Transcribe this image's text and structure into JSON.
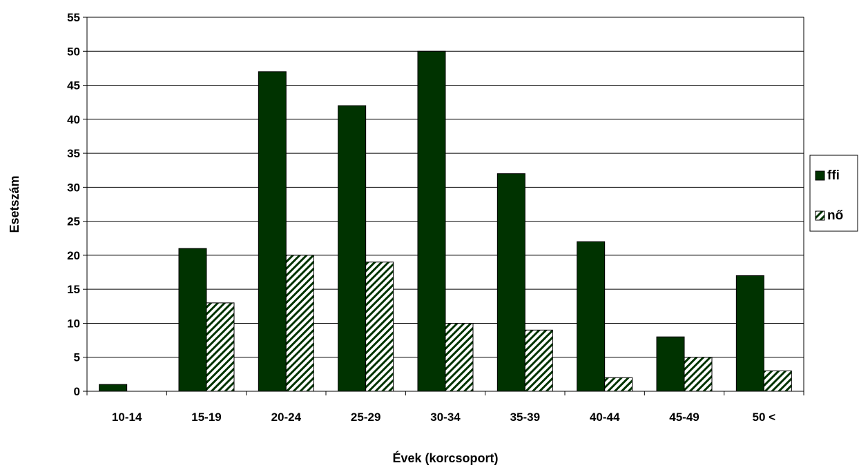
{
  "chart_data": {
    "type": "bar",
    "title": "",
    "xlabel": "Évek (korcsoport)",
    "ylabel": "Esetszám",
    "categories": [
      "10-14",
      "15-19",
      "20-24",
      "25-29",
      "30-34",
      "35-39",
      "40-44",
      "45-49",
      "50 <"
    ],
    "series": [
      {
        "name": "ffi",
        "values": [
          1,
          21,
          47,
          42,
          50,
          32,
          22,
          8,
          17
        ],
        "color": "#003300",
        "fill": "solid"
      },
      {
        "name": "nő",
        "values": [
          0,
          13,
          20,
          19,
          10,
          9,
          2,
          5,
          3
        ],
        "color": "#003300",
        "fill": "hatched"
      }
    ],
    "ylim": [
      0,
      55
    ],
    "yticks": [
      0,
      5,
      10,
      15,
      20,
      25,
      30,
      35,
      40,
      45,
      50,
      55
    ],
    "grid": true,
    "legend": "right"
  }
}
